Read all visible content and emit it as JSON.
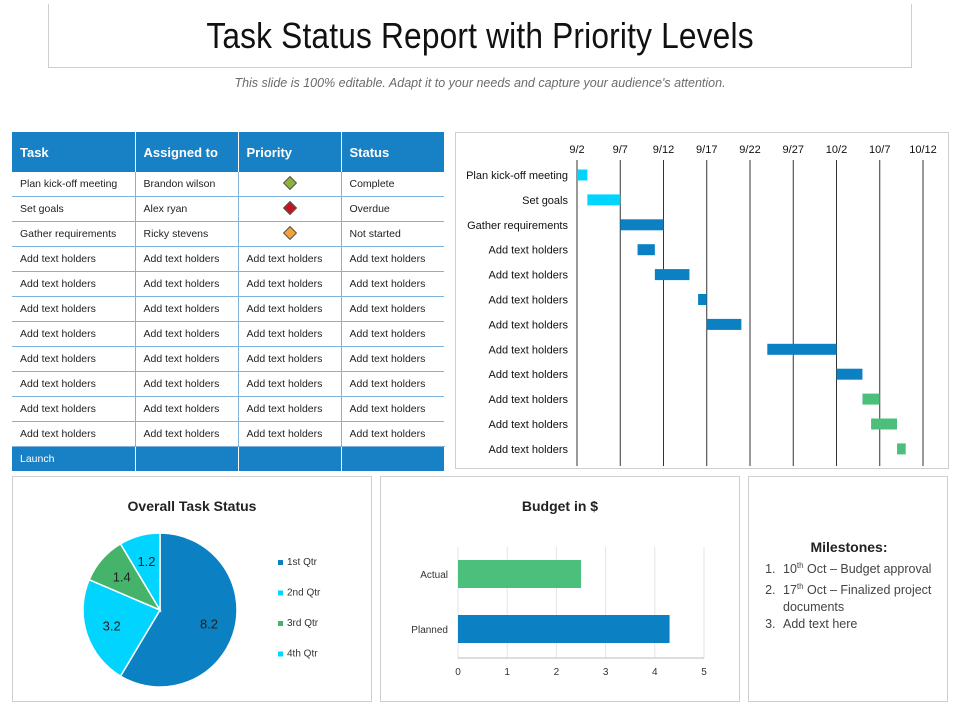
{
  "header": {
    "title": "Task Status Report with Priority Levels",
    "subtitle": "This slide is 100% editable. Adapt it to your needs and capture your audience's attention."
  },
  "table": {
    "columns": [
      "Task",
      "Assigned to",
      "Priority",
      "Status"
    ],
    "rows": [
      {
        "task": "Plan kick-off meeting",
        "assigned": "Brandon wilson",
        "priority_color": "#8db33b",
        "status": "Complete"
      },
      {
        "task": "Set goals",
        "assigned": "Alex ryan",
        "priority_color": "#c0161f",
        "status": "Overdue"
      },
      {
        "task": "Gather requirements",
        "assigned": "Ricky stevens",
        "priority_color": "#f2a23a",
        "status": "Not started"
      },
      {
        "task": "Add text holders",
        "assigned": "Add text holders",
        "priority": "Add text holders",
        "status": "Add text holders"
      },
      {
        "task": "Add text holders",
        "assigned": "Add text holders",
        "priority": "Add text holders",
        "status": "Add text holders"
      },
      {
        "task": "Add text holders",
        "assigned": "Add text holders",
        "priority": "Add text holders",
        "status": "Add text holders"
      },
      {
        "task": "Add text holders",
        "assigned": "Add text holders",
        "priority": "Add text holders",
        "status": "Add text holders"
      },
      {
        "task": "Add text holders",
        "assigned": "Add text holders",
        "priority": "Add text holders",
        "status": "Add text holders"
      },
      {
        "task": "Add text holders",
        "assigned": "Add text holders",
        "priority": "Add text holders",
        "status": "Add text holders"
      },
      {
        "task": "Add text holders",
        "assigned": "Add text holders",
        "priority": "Add text holders",
        "status": "Add text holders"
      },
      {
        "task": "Add text holders",
        "assigned": "Add text holders",
        "priority": "Add text holders",
        "status": "Add text holders"
      }
    ],
    "footer": "Launch"
  },
  "chart_data": [
    {
      "type": "gantt",
      "title": "",
      "x_ticks": [
        "9/2",
        "9/7",
        "9/12",
        "9/17",
        "9/22",
        "9/27",
        "10/2",
        "10/7",
        "10/12"
      ],
      "x_range_days": [
        0,
        40
      ],
      "tasks": [
        {
          "label": "Plan kick-off meeting",
          "start": 0,
          "duration": 1.2,
          "color": "#00d4ff"
        },
        {
          "label": "Set goals",
          "start": 1.2,
          "duration": 3.8,
          "color": "#00d4ff"
        },
        {
          "label": "Gather requirements",
          "start": 5,
          "duration": 5,
          "color": "#0b80c2"
        },
        {
          "label": "Add text holders",
          "start": 7,
          "duration": 2,
          "color": "#0b80c2"
        },
        {
          "label": "Add text holders",
          "start": 9,
          "duration": 4,
          "color": "#0b80c2"
        },
        {
          "label": "Add text holders",
          "start": 14,
          "duration": 1,
          "color": "#0b80c2"
        },
        {
          "label": "Add text holders",
          "start": 15,
          "duration": 4,
          "color": "#0b80c2"
        },
        {
          "label": "Add text holders",
          "start": 22,
          "duration": 8,
          "color": "#0b80c2"
        },
        {
          "label": "Add text holders",
          "start": 30,
          "duration": 3,
          "color": "#0b80c2"
        },
        {
          "label": "Add text holders",
          "start": 33,
          "duration": 2,
          "color": "#4cbf7d"
        },
        {
          "label": "Add text holders",
          "start": 34,
          "duration": 3,
          "color": "#4cbf7d"
        },
        {
          "label": "Add text holders",
          "start": 37,
          "duration": 1,
          "color": "#4cbf7d"
        }
      ]
    },
    {
      "type": "pie",
      "title": "Overall Task Status",
      "categories": [
        "1st Qtr",
        "2nd Qtr",
        "3rd Qtr",
        "4th Qtr"
      ],
      "values": [
        8.2,
        3.2,
        1.4,
        1.2
      ],
      "labels": [
        "8.2",
        "3.2",
        "1.4",
        "1.2"
      ],
      "colors": [
        "#0b80c2",
        "#00d4ff",
        "#45b46a",
        "#00d4ff"
      ],
      "legend": "right"
    },
    {
      "type": "bar",
      "orientation": "horizontal",
      "title": "Budget in $",
      "categories": [
        "Actual",
        "Planned"
      ],
      "values": [
        2.5,
        4.3
      ],
      "colors": [
        "#4cbf7d",
        "#0b80c2"
      ],
      "xlim": [
        0,
        5
      ],
      "x_ticks": [
        "0",
        "1",
        "2",
        "3",
        "4",
        "5"
      ]
    }
  ],
  "milestones": {
    "title": "Milestones:",
    "items": [
      {
        "prefix": "10",
        "sup": "th",
        "text": " Oct – Budget approval"
      },
      {
        "prefix": "17",
        "sup": "th",
        "text": " Oct – Finalized project documents"
      },
      {
        "prefix": "Add text here",
        "sup": "",
        "text": ""
      }
    ]
  }
}
